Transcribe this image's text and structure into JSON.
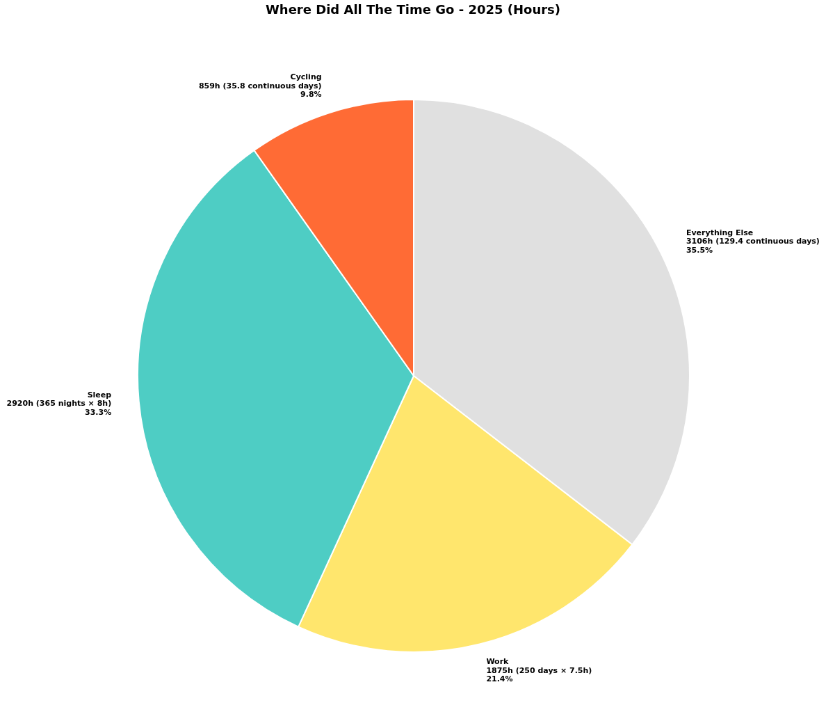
{
  "chart_data": {
    "type": "pie",
    "title": "Where Did All The Time Go - 2025 (Hours)",
    "categories": [
      "Everything Else",
      "Work",
      "Sleep",
      "Cycling"
    ],
    "values": [
      3106,
      1875,
      2920,
      859
    ],
    "colors": [
      "#e0e0e0",
      "#ffe66d",
      "#4ecdc4",
      "#ff6b35"
    ],
    "value_labels": [
      "3106h (129.4 continuous days)\n35.5%",
      "1875h (250 days × 7.5h)\n21.4%",
      "2920h (365 nights × 8h)\n33.3%",
      "859h (35.8 continuous days)\n9.8%"
    ],
    "legend": false
  }
}
